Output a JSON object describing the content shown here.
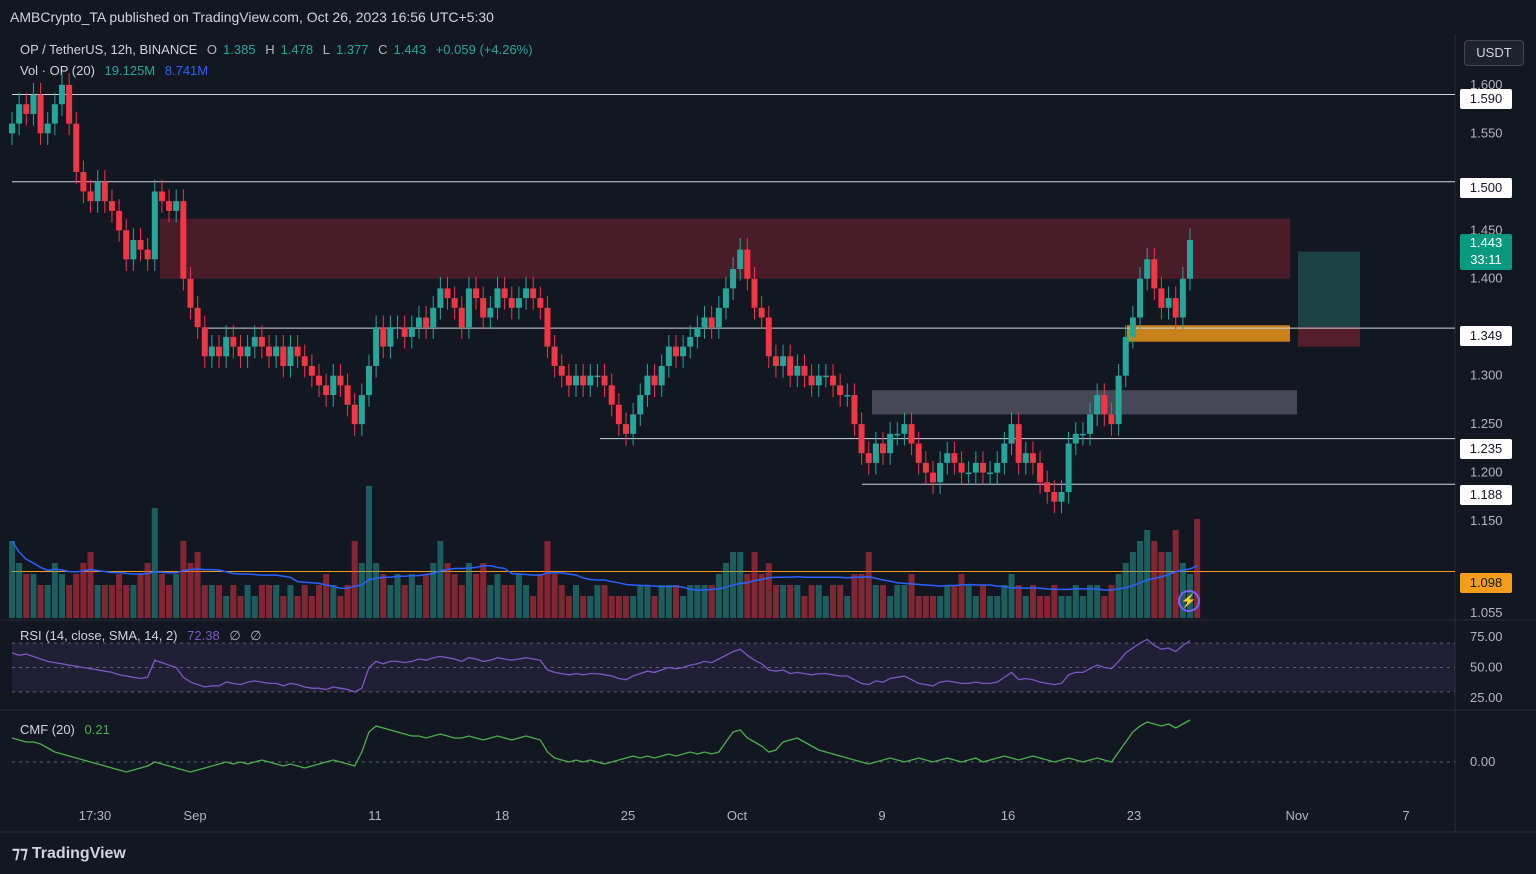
{
  "header": {
    "publisher_line": "AMBCrypto_TA published on TradingView.com, Oct 26, 2023 16:56 UTC+5:30"
  },
  "legend": {
    "symbol": "OP / TetherUS, 12h, BINANCE",
    "o_label": "O",
    "o_val": "1.385",
    "h_label": "H",
    "h_val": "1.478",
    "l_label": "L",
    "l_val": "1.377",
    "c_label": "C",
    "c_val": "1.443",
    "change": "+0.059 (+4.26%)",
    "vol_label": "Vol · OP (20)",
    "vol_val": "19.125M",
    "vol_ma": "8.741M",
    "rsi_label": "RSI (14, close, SMA, 14, 2)",
    "rsi_val": "72.38",
    "rsi_extra1": "∅",
    "rsi_extra2": "∅",
    "cmf_label": "CMF (20)",
    "cmf_val": "0.21"
  },
  "currency_button": "USDT",
  "brand": "TradingView",
  "colors": {
    "up": "#26a69a",
    "down": "#f23645",
    "supply_zone": "#5c1f2e",
    "support_zone": "#f59d1b",
    "demand_zone": "#5d606b",
    "rsi": "#7e57c2",
    "cmf": "#4caf50",
    "vol_ma": "#2962ff"
  },
  "price_tags": {
    "p1590": "1.590",
    "p1500": "1.500",
    "current": "1.443",
    "countdown": "33:11",
    "p1349": "1.349",
    "p1235": "1.235",
    "p1188": "1.188",
    "p1098": "1.098"
  },
  "chart_data": {
    "type": "candlestick",
    "title": "OP / TetherUS, 12h, BINANCE",
    "y_axis_ticks": [
      "1.600",
      "1.550",
      "1.450",
      "1.400",
      "1.300",
      "1.250",
      "1.200",
      "1.150",
      "1.055"
    ],
    "y_range": [
      1.05,
      1.605
    ],
    "x_axis_ticks": [
      "17:30",
      "Sep",
      "11",
      "18",
      "25",
      "Oct",
      "9",
      "16",
      "23",
      "Nov",
      "7"
    ],
    "horizontal_levels": [
      1.59,
      1.5,
      1.349,
      1.235,
      1.188,
      1.098
    ],
    "zones": [
      {
        "name": "supply",
        "from": 1.4,
        "to": 1.462
      },
      {
        "name": "support",
        "from": 1.335,
        "to": 1.352
      },
      {
        "name": "demand",
        "from": 1.26,
        "to": 1.285
      }
    ],
    "closes": [
      1.56,
      1.58,
      1.57,
      1.59,
      1.55,
      1.56,
      1.58,
      1.6,
      1.56,
      1.51,
      1.49,
      1.48,
      1.5,
      1.48,
      1.47,
      1.45,
      1.42,
      1.44,
      1.43,
      1.42,
      1.49,
      1.48,
      1.47,
      1.48,
      1.4,
      1.37,
      1.35,
      1.32,
      1.33,
      1.32,
      1.34,
      1.33,
      1.32,
      1.33,
      1.34,
      1.33,
      1.32,
      1.33,
      1.31,
      1.33,
      1.32,
      1.31,
      1.3,
      1.29,
      1.28,
      1.3,
      1.29,
      1.27,
      1.25,
      1.28,
      1.31,
      1.35,
      1.33,
      1.35,
      1.35,
      1.34,
      1.35,
      1.36,
      1.35,
      1.37,
      1.39,
      1.38,
      1.37,
      1.35,
      1.39,
      1.38,
      1.36,
      1.37,
      1.39,
      1.38,
      1.37,
      1.38,
      1.39,
      1.38,
      1.37,
      1.33,
      1.31,
      1.3,
      1.29,
      1.3,
      1.29,
      1.3,
      1.3,
      1.29,
      1.27,
      1.25,
      1.24,
      1.26,
      1.28,
      1.3,
      1.29,
      1.31,
      1.33,
      1.32,
      1.33,
      1.34,
      1.35,
      1.36,
      1.35,
      1.37,
      1.39,
      1.41,
      1.43,
      1.4,
      1.37,
      1.36,
      1.32,
      1.31,
      1.32,
      1.3,
      1.31,
      1.3,
      1.29,
      1.3,
      1.3,
      1.29,
      1.28,
      1.28,
      1.25,
      1.22,
      1.21,
      1.23,
      1.22,
      1.24,
      1.24,
      1.25,
      1.23,
      1.21,
      1.2,
      1.19,
      1.21,
      1.22,
      1.21,
      1.2,
      1.2,
      1.21,
      1.2,
      1.2,
      1.21,
      1.23,
      1.25,
      1.21,
      1.22,
      1.21,
      1.19,
      1.18,
      1.17,
      1.18,
      1.23,
      1.24,
      1.24,
      1.26,
      1.28,
      1.26,
      1.25,
      1.3,
      1.34,
      1.36,
      1.4,
      1.42,
      1.39,
      1.37,
      1.38,
      1.36,
      1.4,
      1.44
    ],
    "volumes": [
      0.7,
      0.5,
      0.4,
      0.4,
      0.3,
      0.3,
      0.5,
      0.4,
      0.3,
      0.4,
      0.5,
      0.6,
      0.3,
      0.3,
      0.3,
      0.4,
      0.3,
      0.3,
      0.4,
      0.5,
      1.0,
      0.4,
      0.3,
      0.4,
      0.7,
      0.5,
      0.6,
      0.3,
      0.3,
      0.3,
      0.2,
      0.3,
      0.2,
      0.3,
      0.2,
      0.3,
      0.3,
      0.3,
      0.2,
      0.3,
      0.2,
      0.3,
      0.2,
      0.3,
      0.4,
      0.3,
      0.2,
      0.3,
      0.7,
      0.5,
      1.2,
      0.5,
      0.4,
      0.3,
      0.4,
      0.3,
      0.4,
      0.3,
      0.4,
      0.5,
      0.7,
      0.5,
      0.4,
      0.3,
      0.5,
      0.4,
      0.5,
      0.3,
      0.4,
      0.3,
      0.3,
      0.4,
      0.3,
      0.2,
      0.4,
      0.7,
      0.4,
      0.3,
      0.2,
      0.3,
      0.2,
      0.2,
      0.3,
      0.3,
      0.2,
      0.2,
      0.2,
      0.2,
      0.3,
      0.3,
      0.2,
      0.3,
      0.3,
      0.3,
      0.2,
      0.3,
      0.3,
      0.3,
      0.3,
      0.4,
      0.5,
      0.6,
      0.6,
      0.4,
      0.6,
      0.4,
      0.5,
      0.3,
      0.3,
      0.3,
      0.3,
      0.2,
      0.3,
      0.3,
      0.2,
      0.3,
      0.3,
      0.2,
      0.4,
      0.4,
      0.6,
      0.3,
      0.3,
      0.2,
      0.3,
      0.3,
      0.4,
      0.2,
      0.2,
      0.2,
      0.2,
      0.3,
      0.3,
      0.4,
      0.3,
      0.2,
      0.3,
      0.2,
      0.2,
      0.3,
      0.4,
      0.3,
      0.2,
      0.3,
      0.2,
      0.2,
      0.3,
      0.2,
      0.2,
      0.3,
      0.2,
      0.3,
      0.3,
      0.2,
      0.3,
      0.4,
      0.5,
      0.6,
      0.7,
      0.8,
      0.7,
      0.6,
      0.6,
      0.8,
      0.5,
      0.4,
      0.9
    ],
    "rsi": [
      62,
      60,
      61,
      59,
      57,
      55,
      54,
      53,
      52,
      51,
      50,
      49,
      48,
      47,
      46,
      44,
      43,
      42,
      41,
      42,
      56,
      54,
      52,
      50,
      42,
      38,
      36,
      34,
      35,
      35,
      38,
      37,
      36,
      38,
      39,
      38,
      37,
      37,
      35,
      37,
      36,
      34,
      33,
      33,
      32,
      34,
      33,
      32,
      30,
      33,
      50,
      55,
      53,
      55,
      55,
      54,
      55,
      57,
      56,
      58,
      59,
      58,
      57,
      55,
      58,
      57,
      55,
      56,
      58,
      57,
      56,
      57,
      58,
      57,
      56,
      48,
      46,
      45,
      44,
      45,
      44,
      45,
      45,
      44,
      43,
      41,
      40,
      43,
      45,
      47,
      46,
      48,
      50,
      49,
      50,
      52,
      53,
      55,
      54,
      57,
      60,
      63,
      65,
      60,
      56,
      53,
      48,
      47,
      48,
      45,
      46,
      45,
      44,
      45,
      45,
      44,
      43,
      43,
      40,
      37,
      36,
      39,
      38,
      41,
      42,
      43,
      40,
      37,
      36,
      35,
      38,
      39,
      38,
      37,
      37,
      38,
      37,
      37,
      38,
      42,
      46,
      40,
      41,
      40,
      38,
      37,
      36,
      37,
      44,
      46,
      46,
      49,
      52,
      50,
      49,
      55,
      62,
      66,
      70,
      73,
      68,
      65,
      66,
      63,
      68,
      72
    ],
    "cmf": [
      0.12,
      0.11,
      0.1,
      0.1,
      0.09,
      0.07,
      0.05,
      0.04,
      0.03,
      0.02,
      0.01,
      0.0,
      -0.01,
      -0.02,
      -0.03,
      -0.04,
      -0.05,
      -0.04,
      -0.03,
      -0.02,
      0.0,
      -0.01,
      -0.02,
      -0.03,
      -0.04,
      -0.05,
      -0.04,
      -0.03,
      -0.02,
      -0.01,
      0.0,
      -0.01,
      0.0,
      -0.01,
      0.0,
      0.01,
      0.0,
      -0.01,
      -0.02,
      -0.01,
      -0.02,
      -0.03,
      -0.02,
      -0.01,
      0.0,
      0.01,
      0.0,
      -0.01,
      -0.02,
      0.05,
      0.15,
      0.18,
      0.17,
      0.16,
      0.15,
      0.14,
      0.13,
      0.13,
      0.12,
      0.13,
      0.14,
      0.13,
      0.12,
      0.12,
      0.13,
      0.12,
      0.11,
      0.12,
      0.13,
      0.12,
      0.11,
      0.12,
      0.13,
      0.12,
      0.11,
      0.05,
      0.02,
      0.01,
      0.0,
      0.01,
      0.0,
      0.01,
      0.0,
      -0.01,
      0.0,
      0.01,
      0.02,
      0.03,
      0.02,
      0.03,
      0.02,
      0.03,
      0.04,
      0.03,
      0.04,
      0.05,
      0.04,
      0.05,
      0.04,
      0.05,
      0.1,
      0.15,
      0.16,
      0.12,
      0.1,
      0.08,
      0.05,
      0.06,
      0.1,
      0.11,
      0.12,
      0.1,
      0.08,
      0.06,
      0.05,
      0.04,
      0.03,
      0.02,
      0.01,
      0.0,
      -0.01,
      0.0,
      0.01,
      0.02,
      0.01,
      0.0,
      0.01,
      0.02,
      0.01,
      0.0,
      0.01,
      0.02,
      0.01,
      0.0,
      0.01,
      0.02,
      0.0,
      0.01,
      0.02,
      0.03,
      0.02,
      0.01,
      0.02,
      0.03,
      0.02,
      0.01,
      0.0,
      0.01,
      0.02,
      0.01,
      0.0,
      0.01,
      0.02,
      0.01,
      0.0,
      0.05,
      0.1,
      0.15,
      0.18,
      0.2,
      0.19,
      0.18,
      0.19,
      0.17,
      0.19,
      0.21
    ]
  }
}
